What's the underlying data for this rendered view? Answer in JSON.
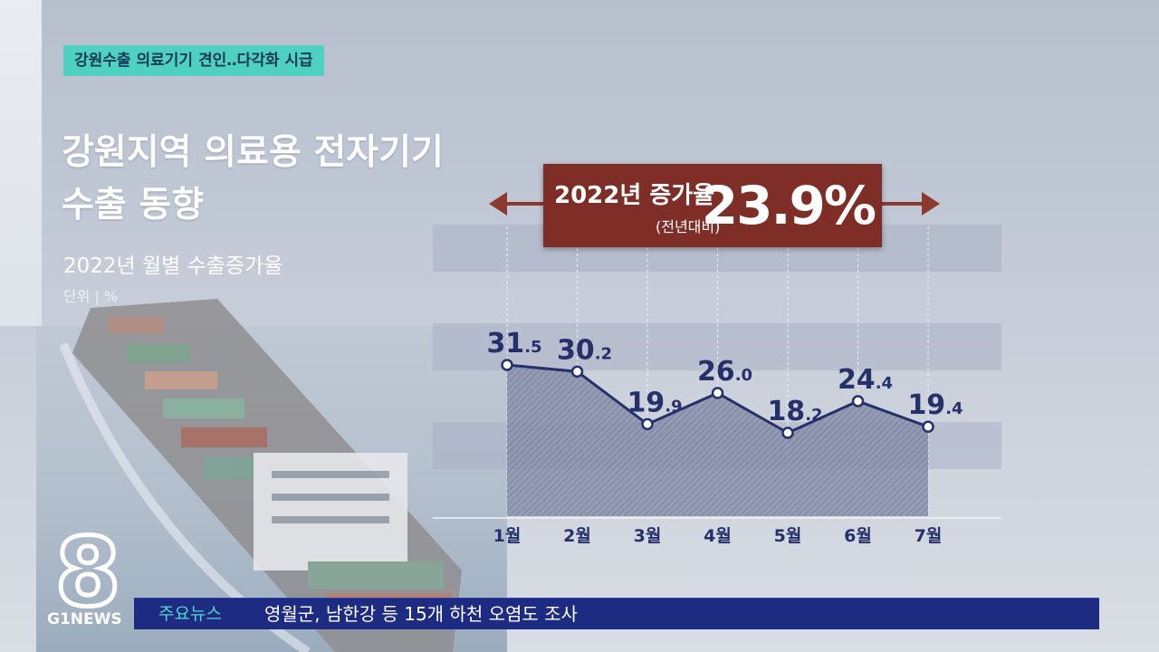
{
  "tag_label": "강원수출 의료기기 견인‥다각화 시급",
  "title_line1": "강원지역 의료용 전자기기",
  "title_line2": "수출 동향",
  "subtitle": "2022년 월별 수출증가율",
  "unit_label": "단위 | %",
  "growth": {
    "label": "2022년 증가율",
    "sub_label": "(전년대비)",
    "value": "23.9%"
  },
  "logo": {
    "brand": "G1NEWS",
    "channel": "8"
  },
  "ticker": {
    "label": "주요뉴스",
    "headline": "영월군, 남한강 등 15개 하천 오염도 조사"
  },
  "colors": {
    "line": "#26306a",
    "growth_box": "#7f2e27",
    "tag_bg": "#4fd1c1",
    "ticker_bg": "#1e2b82"
  },
  "chart_data": {
    "type": "area",
    "categories": [
      "1월",
      "2월",
      "3월",
      "4월",
      "5월",
      "6월",
      "7월"
    ],
    "values": [
      31.5,
      30.2,
      19.9,
      26.0,
      18.2,
      24.4,
      19.4
    ],
    "value_labels": [
      {
        "int": "31",
        "dec": ".5"
      },
      {
        "int": "30",
        "dec": ".2"
      },
      {
        "int": "19",
        "dec": ".9"
      },
      {
        "int": "26",
        "dec": ".0"
      },
      {
        "int": "18",
        "dec": ".2"
      },
      {
        "int": "24",
        "dec": ".4"
      },
      {
        "int": "19",
        "dec": ".4"
      }
    ],
    "grid": "horizontal bands",
    "legend": "none"
  }
}
